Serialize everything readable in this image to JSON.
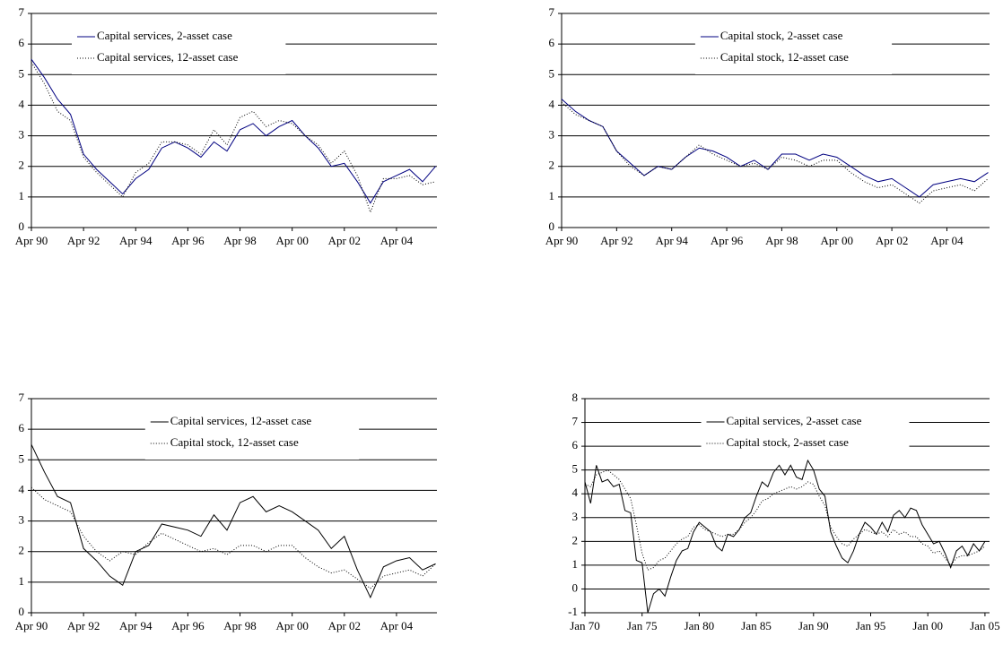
{
  "chart_data": [
    {
      "type": "line",
      "legend": "upper left",
      "grid": true,
      "x": [
        1990.25,
        1990.75,
        1991.25,
        1991.75,
        1992.25,
        1992.75,
        1993.25,
        1993.75,
        1994.25,
        1994.75,
        1995.25,
        1995.75,
        1996.25,
        1996.75,
        1997.25,
        1997.75,
        1998.25,
        1998.75,
        1999.25,
        1999.75,
        2000.25,
        2000.75,
        2001.25,
        2001.75,
        2002.25,
        2002.75,
        2003.25,
        2003.75,
        2004.25,
        2004.75,
        2005.25,
        2005.75
      ],
      "xlim": [
        1990.25,
        2005.8
      ],
      "xticks": [
        {
          "value": 1990.25,
          "label": "Apr 90"
        },
        {
          "value": 1992.25,
          "label": "Apr 92"
        },
        {
          "value": 1994.25,
          "label": "Apr 94"
        },
        {
          "value": 1996.25,
          "label": "Apr 96"
        },
        {
          "value": 1998.25,
          "label": "Apr 98"
        },
        {
          "value": 2000.25,
          "label": "Apr 00"
        },
        {
          "value": 2002.25,
          "label": "Apr 02"
        },
        {
          "value": 2004.25,
          "label": "Apr 04"
        }
      ],
      "ylim": [
        0,
        7
      ],
      "yticks": [
        0,
        1,
        2,
        3,
        4,
        5,
        6,
        7
      ],
      "series": [
        {
          "name": "Capital services, 2-asset case",
          "color": "#000080",
          "style": "solid",
          "values": [
            5.5,
            4.9,
            4.2,
            3.7,
            2.4,
            1.9,
            1.5,
            1.1,
            1.6,
            1.9,
            2.6,
            2.8,
            2.6,
            2.3,
            2.8,
            2.5,
            3.2,
            3.4,
            3.0,
            3.3,
            3.5,
            3.0,
            2.6,
            2.0,
            2.1,
            1.5,
            0.8,
            1.5,
            1.7,
            1.9,
            1.5,
            2.0
          ]
        },
        {
          "name": "Capital services, 12-asset case",
          "color": "#000000",
          "style": "dotted",
          "values": [
            5.4,
            4.7,
            3.8,
            3.5,
            2.3,
            1.8,
            1.4,
            1.0,
            1.8,
            2.1,
            2.8,
            2.8,
            2.7,
            2.4,
            3.2,
            2.7,
            3.6,
            3.8,
            3.3,
            3.5,
            3.4,
            3.0,
            2.7,
            2.1,
            2.5,
            1.7,
            0.5,
            1.6,
            1.6,
            1.7,
            1.4,
            1.5
          ]
        }
      ]
    },
    {
      "type": "line",
      "legend": "upper center",
      "grid": true,
      "x": [
        1990.25,
        1990.75,
        1991.25,
        1991.75,
        1992.25,
        1992.75,
        1993.25,
        1993.75,
        1994.25,
        1994.75,
        1995.25,
        1995.75,
        1996.25,
        1996.75,
        1997.25,
        1997.75,
        1998.25,
        1998.75,
        1999.25,
        1999.75,
        2000.25,
        2000.75,
        2001.25,
        2001.75,
        2002.25,
        2002.75,
        2003.25,
        2003.75,
        2004.25,
        2004.75,
        2005.25,
        2005.75
      ],
      "xlim": [
        1990.25,
        2005.8
      ],
      "xticks": [
        {
          "value": 1990.25,
          "label": "Apr 90"
        },
        {
          "value": 1992.25,
          "label": "Apr 92"
        },
        {
          "value": 1994.25,
          "label": "Apr 94"
        },
        {
          "value": 1996.25,
          "label": "Apr 96"
        },
        {
          "value": 1998.25,
          "label": "Apr 98"
        },
        {
          "value": 2000.25,
          "label": "Apr 00"
        },
        {
          "value": 2002.25,
          "label": "Apr 02"
        },
        {
          "value": 2004.25,
          "label": "Apr 04"
        }
      ],
      "ylim": [
        0,
        7
      ],
      "yticks": [
        0,
        1,
        2,
        3,
        4,
        5,
        6,
        7
      ],
      "series": [
        {
          "name": "Capital stock, 2-asset case",
          "color": "#000080",
          "style": "solid",
          "values": [
            4.2,
            3.8,
            3.5,
            3.3,
            2.5,
            2.1,
            1.7,
            2.0,
            1.9,
            2.3,
            2.6,
            2.5,
            2.3,
            2.0,
            2.2,
            1.9,
            2.4,
            2.4,
            2.2,
            2.4,
            2.3,
            2.0,
            1.7,
            1.5,
            1.6,
            1.3,
            1.0,
            1.4,
            1.5,
            1.6,
            1.5,
            1.8
          ]
        },
        {
          "name": "Capital stock, 12-asset case",
          "color": "#000000",
          "style": "dotted",
          "values": [
            4.1,
            3.7,
            3.5,
            3.3,
            2.5,
            2.0,
            1.7,
            2.0,
            1.9,
            2.3,
            2.7,
            2.4,
            2.2,
            2.0,
            2.1,
            1.9,
            2.3,
            2.2,
            2.0,
            2.2,
            2.2,
            1.8,
            1.5,
            1.3,
            1.4,
            1.1,
            0.8,
            1.2,
            1.3,
            1.4,
            1.2,
            1.6
          ]
        }
      ]
    },
    {
      "type": "line",
      "legend": "upper center",
      "grid": true,
      "x": [
        1990.25,
        1990.75,
        1991.25,
        1991.75,
        1992.25,
        1992.75,
        1993.25,
        1993.75,
        1994.25,
        1994.75,
        1995.25,
        1995.75,
        1996.25,
        1996.75,
        1997.25,
        1997.75,
        1998.25,
        1998.75,
        1999.25,
        1999.75,
        2000.25,
        2000.75,
        2001.25,
        2001.75,
        2002.25,
        2002.75,
        2003.25,
        2003.75,
        2004.25,
        2004.75,
        2005.25,
        2005.75
      ],
      "xlim": [
        1990.25,
        2005.8
      ],
      "xticks": [
        {
          "value": 1990.25,
          "label": "Apr 90"
        },
        {
          "value": 1992.25,
          "label": "Apr 92"
        },
        {
          "value": 1994.25,
          "label": "Apr 94"
        },
        {
          "value": 1996.25,
          "label": "Apr 96"
        },
        {
          "value": 1998.25,
          "label": "Apr 98"
        },
        {
          "value": 2000.25,
          "label": "Apr 00"
        },
        {
          "value": 2002.25,
          "label": "Apr 02"
        },
        {
          "value": 2004.25,
          "label": "Apr 04"
        }
      ],
      "ylim": [
        0,
        7
      ],
      "yticks": [
        0,
        1,
        2,
        3,
        4,
        5,
        6,
        7
      ],
      "series": [
        {
          "name": "Capital services, 12-asset case",
          "color": "#000000",
          "style": "solid",
          "values": [
            5.5,
            4.6,
            3.8,
            3.6,
            2.1,
            1.7,
            1.2,
            0.9,
            2.0,
            2.2,
            2.9,
            2.8,
            2.7,
            2.5,
            3.2,
            2.7,
            3.6,
            3.8,
            3.3,
            3.5,
            3.3,
            3.0,
            2.7,
            2.1,
            2.5,
            1.4,
            0.5,
            1.5,
            1.7,
            1.8,
            1.4,
            1.6
          ]
        },
        {
          "name": "Capital stock, 12-asset case",
          "color": "#000000",
          "style": "dotted",
          "values": [
            4.1,
            3.7,
            3.5,
            3.3,
            2.5,
            2.0,
            1.7,
            2.0,
            1.9,
            2.3,
            2.6,
            2.4,
            2.2,
            2.0,
            2.1,
            1.9,
            2.2,
            2.2,
            2.0,
            2.2,
            2.2,
            1.8,
            1.5,
            1.3,
            1.4,
            1.1,
            0.8,
            1.2,
            1.3,
            1.4,
            1.2,
            1.6
          ]
        }
      ]
    },
    {
      "type": "line",
      "legend": "upper center",
      "grid": true,
      "x": [
        1970,
        1970.5,
        1971,
        1971.5,
        1972,
        1972.5,
        1973,
        1973.5,
        1974,
        1974.5,
        1975,
        1975.5,
        1976,
        1976.5,
        1977,
        1977.5,
        1978,
        1978.5,
        1979,
        1979.5,
        1980,
        1980.5,
        1981,
        1981.5,
        1982,
        1982.5,
        1983,
        1983.5,
        1984,
        1984.5,
        1985,
        1985.5,
        1986,
        1986.5,
        1987,
        1987.5,
        1988,
        1988.5,
        1989,
        1989.5,
        1990,
        1990.5,
        1991,
        1991.5,
        1992,
        1992.5,
        1993,
        1993.5,
        1994,
        1994.5,
        1995,
        1995.5,
        1996,
        1996.5,
        1997,
        1997.5,
        1998,
        1998.5,
        1999,
        1999.5,
        2000,
        2000.5,
        2001,
        2001.5,
        2002,
        2002.5,
        2003,
        2003.5,
        2004,
        2004.5,
        2005
      ],
      "xlim": [
        1970,
        2005.4
      ],
      "xticks": [
        {
          "value": 1970,
          "label": "Jan 70"
        },
        {
          "value": 1975,
          "label": "Jan 75"
        },
        {
          "value": 1980,
          "label": "Jan 80"
        },
        {
          "value": 1985,
          "label": "Jan 85"
        },
        {
          "value": 1990,
          "label": "Jan 90"
        },
        {
          "value": 1995,
          "label": "Jan 95"
        },
        {
          "value": 2000,
          "label": "Jan 00"
        },
        {
          "value": 2005,
          "label": "Jan 05"
        }
      ],
      "ylim": [
        -1,
        8
      ],
      "yticks": [
        -1,
        0,
        1,
        2,
        3,
        4,
        5,
        6,
        7,
        8
      ],
      "series": [
        {
          "name": "Capital services, 2-asset case",
          "color": "#000000",
          "style": "solid",
          "values": [
            4.5,
            3.6,
            5.2,
            4.5,
            4.6,
            4.3,
            4.4,
            3.3,
            3.2,
            1.2,
            1.1,
            -1.0,
            -0.2,
            0,
            -0.3,
            0.5,
            1.2,
            1.6,
            1.7,
            2.4,
            2.8,
            2.6,
            2.4,
            1.8,
            1.6,
            2.3,
            2.2,
            2.5,
            3.0,
            3.2,
            3.9,
            4.5,
            4.3,
            4.9,
            5.2,
            4.8,
            5.2,
            4.7,
            4.6,
            5.4,
            5.0,
            4.2,
            3.9,
            2.4,
            1.8,
            1.3,
            1.1,
            1.6,
            2.3,
            2.8,
            2.6,
            2.3,
            2.8,
            2.4,
            3.1,
            3.3,
            3.0,
            3.4,
            3.3,
            2.7,
            2.3,
            1.9,
            2.0,
            1.5,
            0.9,
            1.6,
            1.8,
            1.4,
            1.9,
            1.6,
            2.0
          ]
        },
        {
          "name": "Capital stock, 2-asset case",
          "color": "#000000",
          "style": "dotted",
          "values": [
            4.4,
            4.3,
            4.8,
            4.9,
            5.0,
            4.8,
            4.6,
            4.2,
            3.8,
            2.7,
            1.5,
            0.8,
            0.9,
            1.2,
            1.3,
            1.6,
            1.9,
            2.1,
            2.2,
            2.6,
            2.7,
            2.5,
            2.4,
            2.3,
            2.2,
            2.3,
            2.3,
            2.5,
            2.8,
            3.0,
            3.3,
            3.7,
            3.8,
            4.0,
            4.1,
            4.2,
            4.3,
            4.2,
            4.3,
            4.5,
            4.4,
            3.9,
            3.5,
            2.6,
            2.2,
            1.9,
            1.8,
            2.1,
            2.3,
            2.5,
            2.4,
            2.3,
            2.4,
            2.2,
            2.5,
            2.3,
            2.4,
            2.2,
            2.2,
            1.9,
            1.8,
            1.5,
            1.6,
            1.3,
            1.0,
            1.3,
            1.4,
            1.4,
            1.5,
            1.6,
            1.8
          ]
        }
      ]
    }
  ]
}
